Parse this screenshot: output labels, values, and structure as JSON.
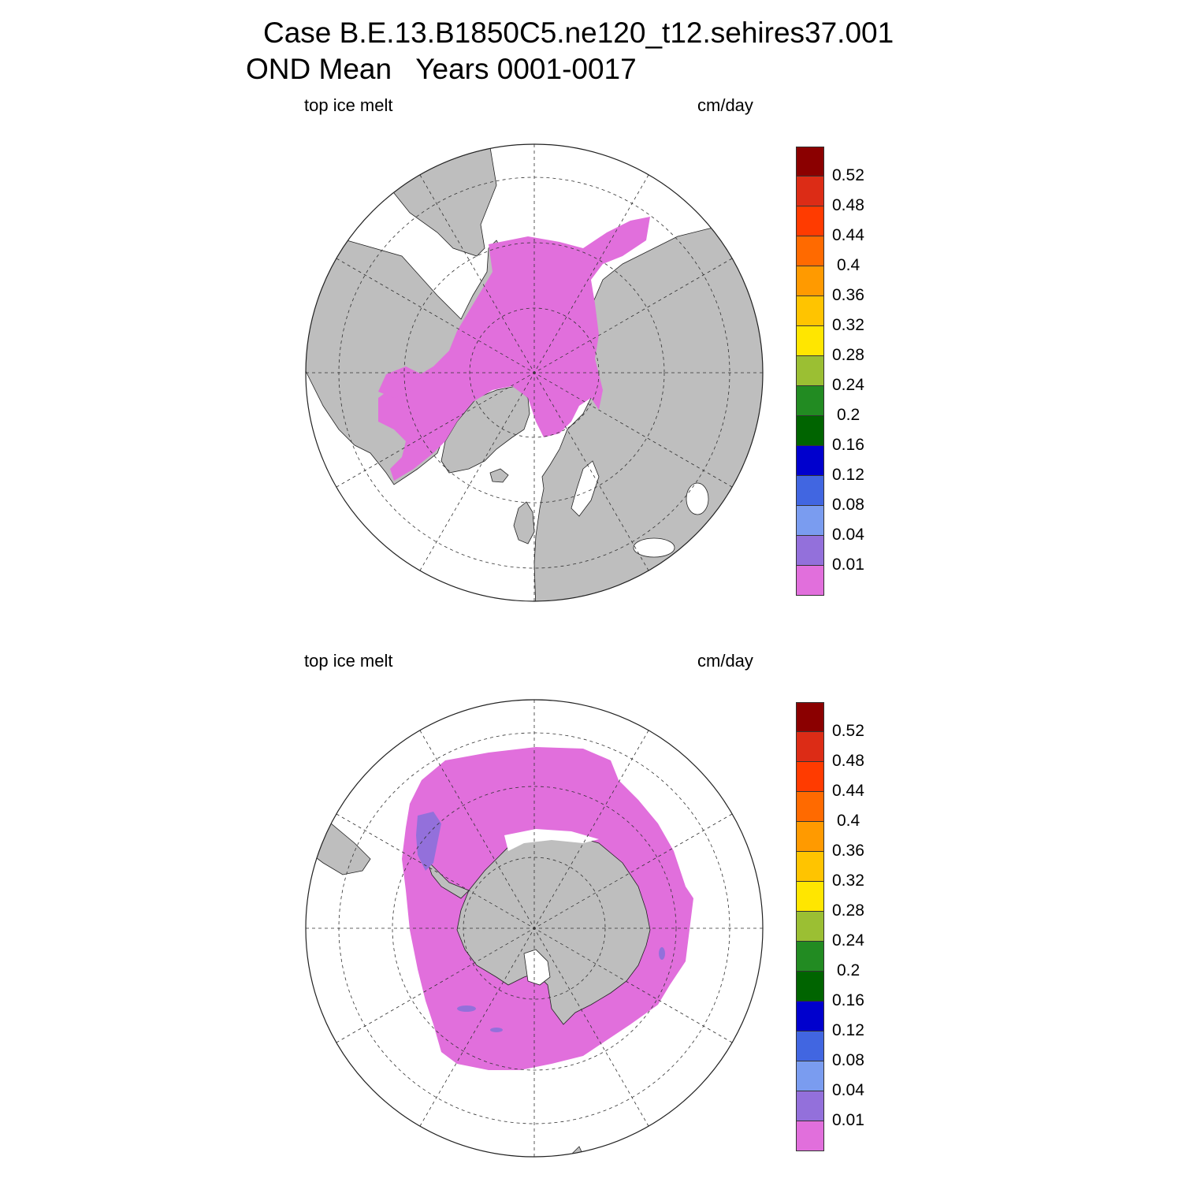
{
  "title": {
    "line1": "Case B.E.13.B1850C5.ne120_t12.sehires37.001",
    "line2": "OND Mean   Years 0001-0017"
  },
  "panels": [
    {
      "id": "arctic",
      "hemisphere": "north",
      "left_label": "top ice melt",
      "right_label": "cm/day"
    },
    {
      "id": "antarctic",
      "hemisphere": "south",
      "left_label": "top ice melt",
      "right_label": "cm/day"
    }
  ],
  "colorbar": {
    "levels": [
      "0.52",
      "0.48",
      "0.44",
      "0.4",
      "0.36",
      "0.32",
      "0.28",
      "0.24",
      "0.2",
      "0.16",
      "0.12",
      "0.08",
      "0.04",
      "0.01"
    ],
    "colors": [
      "#8b0000",
      "#dc2c16",
      "#ff3b00",
      "#ff6a00",
      "#ff9a00",
      "#ffc400",
      "#ffe600",
      "#9bbf33",
      "#228b22",
      "#006400",
      "#0000cd",
      "#4166e1",
      "#7a9cf0",
      "#9370db",
      "#e16fdc"
    ]
  },
  "colors": {
    "land": "#bebebe",
    "ocean": "#ffffff",
    "ice_melt_low": "#e16fdc",
    "ice_melt_0_01": "#9370db",
    "grid": "#333333"
  }
}
